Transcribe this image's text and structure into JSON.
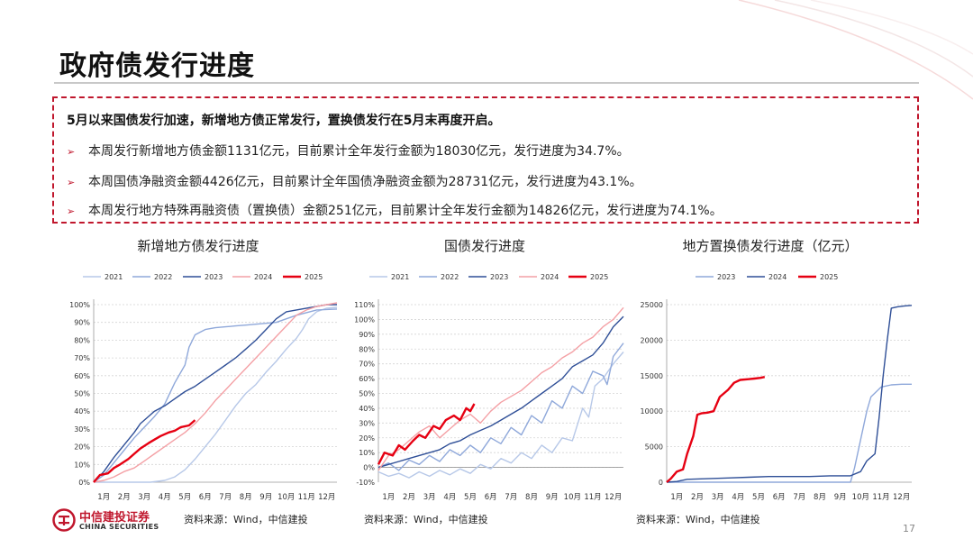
{
  "page": {
    "title": "政府债发行进度",
    "page_number": "17",
    "logo_cn": "中信建投证券",
    "logo_en": "CHINA SECURITIES",
    "source_text": "资料来源：Wind，中信建投"
  },
  "summary": {
    "headline": "5月以来国债发行加速，新增地方债正常发行，置换债发行在5月末再度开启。",
    "bullets": [
      "本周发行新增地方债金额1131亿元，目前累计全年发行金额为18030亿元，发行进度为34.7%。",
      "本周国债净融资金额4426亿元，目前累计全年国债净融资金额为28731亿元，发行进度为43.1%。",
      "本周发行地方特殊再融资债（置换债）金额251亿元，目前累计全年发行金额为14826亿元，发行进度为74.1%。"
    ]
  },
  "chart_data": [
    {
      "type": "line",
      "title": "新增地方债发行进度",
      "x_labels": [
        "1月",
        "2月",
        "3月",
        "4月",
        "5月",
        "6月",
        "7月",
        "8月",
        "9月",
        "10月",
        "11月",
        "12月"
      ],
      "ylim": [
        0,
        100
      ],
      "y_ticks": [
        "0%",
        "10%",
        "20%",
        "30%",
        "40%",
        "50%",
        "60%",
        "70%",
        "80%",
        "90%",
        "100%"
      ],
      "legend_position": "top",
      "series": [
        {
          "name": "2021",
          "color": "#b7c8e8",
          "x": [
            1,
            2,
            3,
            3.8,
            4.5,
            5,
            5.5,
            6,
            6.5,
            7,
            7.5,
            8,
            8.5,
            9,
            9.5,
            10,
            10.5,
            11,
            11.3,
            11.6,
            12,
            12.5,
            13
          ],
          "y": [
            0,
            0,
            0,
            0,
            1,
            3,
            7,
            13,
            20,
            27,
            35,
            43,
            50,
            55,
            62,
            68,
            75,
            81,
            86,
            92,
            96,
            98,
            98.5
          ]
        },
        {
          "name": "2022",
          "color": "#8fa8da",
          "x": [
            1,
            1.5,
            2,
            2.5,
            3,
            3.5,
            4,
            4.5,
            5,
            5.5,
            5.7,
            6,
            6.5,
            7,
            7.5,
            8,
            8.5,
            9,
            9.5,
            10,
            11,
            12,
            13
          ],
          "y": [
            0,
            4,
            11,
            18,
            25,
            31,
            37,
            44,
            56,
            66,
            76,
            83,
            86,
            87,
            87.5,
            88,
            88.5,
            89,
            89.5,
            90,
            94,
            97,
            97.5
          ]
        },
        {
          "name": "2023",
          "color": "#2f4f97",
          "x": [
            1,
            1.5,
            2,
            2.5,
            3,
            3.3,
            3.7,
            4,
            4.5,
            5,
            5.5,
            6,
            6.5,
            7,
            7.5,
            8,
            8.5,
            9,
            9.5,
            10,
            10.5,
            11,
            11.5,
            12,
            12.5,
            13
          ],
          "y": [
            0,
            6,
            14,
            21,
            28,
            33,
            37,
            40,
            43,
            47,
            51,
            54,
            58,
            62,
            66,
            70,
            75,
            80,
            86,
            92,
            96,
            97,
            98,
            99,
            100,
            100
          ]
        },
        {
          "name": "2024",
          "color": "#f4a0a5",
          "x": [
            1,
            1.5,
            2,
            2.5,
            3,
            3.5,
            4,
            4.5,
            5,
            5.5,
            6,
            6.5,
            7,
            7.5,
            8,
            8.5,
            9,
            9.5,
            10,
            10.5,
            11,
            11.5,
            12,
            12.5,
            13
          ],
          "y": [
            0,
            1,
            3,
            6,
            8,
            12,
            16,
            20,
            24,
            28,
            33,
            39,
            46,
            52,
            58,
            64,
            70,
            76,
            82,
            88,
            94,
            97,
            99,
            100,
            101
          ]
        },
        {
          "name": "2025",
          "color": "#e60012",
          "bold": true,
          "x": [
            1,
            1.3,
            1.7,
            2,
            2.3,
            2.7,
            3,
            3.3,
            3.7,
            4,
            4.3,
            4.7,
            5,
            5.3,
            5.7,
            6
          ],
          "y": [
            0,
            4,
            5,
            8,
            10,
            13,
            16,
            19,
            22,
            24,
            26,
            28,
            29,
            31,
            32,
            35
          ]
        }
      ]
    },
    {
      "type": "line",
      "title": "国债发行进度",
      "x_labels": [
        "1月",
        "2月",
        "3月",
        "4月",
        "5月",
        "6月",
        "7月",
        "8月",
        "9月",
        "10月",
        "11月",
        "12月"
      ],
      "ylim": [
        -10,
        110
      ],
      "y_ticks": [
        "-10%",
        "0%",
        "10%",
        "20%",
        "30%",
        "40%",
        "50%",
        "60%",
        "70%",
        "80%",
        "90%",
        "100%",
        "110%"
      ],
      "legend_position": "top",
      "series": [
        {
          "name": "2021",
          "color": "#b7c8e8",
          "x": [
            1,
            1.5,
            2,
            2.5,
            3,
            3.5,
            4,
            4.5,
            5,
            5.5,
            6,
            6.5,
            7,
            7.5,
            8,
            8.5,
            9,
            9.5,
            10,
            10.5,
            11,
            11.3,
            11.6,
            12,
            12.5,
            13
          ],
          "y": [
            -3,
            -6,
            -4,
            -7,
            -3,
            -6,
            -2,
            -5,
            -1,
            -4,
            2,
            -1,
            6,
            3,
            10,
            6,
            15,
            10,
            20,
            18,
            40,
            34,
            55,
            60,
            70,
            78
          ]
        },
        {
          "name": "2022",
          "color": "#8fa8da",
          "x": [
            1,
            1.5,
            2,
            2.5,
            3,
            3.5,
            4,
            4.5,
            5,
            5.5,
            6,
            6.5,
            7,
            7.5,
            8,
            8.5,
            9,
            9.5,
            10,
            10.5,
            11,
            11.5,
            12,
            12.2,
            12.5,
            13
          ],
          "y": [
            0,
            3,
            -2,
            5,
            2,
            8,
            4,
            12,
            8,
            15,
            10,
            20,
            16,
            27,
            22,
            35,
            30,
            45,
            40,
            55,
            50,
            65,
            62,
            56,
            75,
            84
          ]
        },
        {
          "name": "2023",
          "color": "#2f4f97",
          "x": [
            1,
            1.5,
            2,
            2.5,
            3,
            3.5,
            4,
            4.5,
            5,
            5.5,
            6,
            6.5,
            7,
            7.5,
            8,
            8.5,
            9,
            9.5,
            10,
            10.5,
            11,
            11.5,
            12,
            12.5,
            13
          ],
          "y": [
            0,
            2,
            4,
            6,
            8,
            10,
            12,
            16,
            18,
            22,
            25,
            28,
            32,
            36,
            40,
            45,
            50,
            55,
            60,
            68,
            72,
            76,
            84,
            95,
            102
          ]
        },
        {
          "name": "2024",
          "color": "#f4a0a5",
          "x": [
            1,
            1.5,
            2,
            2.5,
            3,
            3.5,
            4,
            4.5,
            5,
            5.5,
            6,
            6.5,
            7,
            7.5,
            8,
            8.5,
            9,
            9.5,
            10,
            10.5,
            11,
            11.5,
            12,
            12.5,
            13
          ],
          "y": [
            -2,
            8,
            12,
            18,
            24,
            28,
            20,
            26,
            32,
            36,
            30,
            38,
            44,
            48,
            52,
            58,
            64,
            68,
            74,
            78,
            84,
            88,
            95,
            100,
            108
          ]
        },
        {
          "name": "2025",
          "color": "#e60012",
          "bold": true,
          "x": [
            1,
            1.3,
            1.7,
            2,
            2.3,
            2.7,
            3,
            3.3,
            3.7,
            4,
            4.3,
            4.7,
            5,
            5.3,
            5.5,
            5.7
          ],
          "y": [
            2,
            10,
            8,
            15,
            12,
            18,
            22,
            20,
            28,
            26,
            32,
            35,
            32,
            40,
            38,
            43
          ]
        }
      ]
    },
    {
      "type": "line",
      "title": "地方置换债发行进度（亿元）",
      "x_labels": [
        "1月",
        "2月",
        "3月",
        "4月",
        "5月",
        "6月",
        "7月",
        "8月",
        "9月",
        "10月",
        "11月",
        "12月"
      ],
      "ylim": [
        0,
        25000
      ],
      "y_ticks": [
        "0",
        "5000",
        "10000",
        "15000",
        "20000",
        "25000"
      ],
      "legend_position": "top",
      "series": [
        {
          "name": "2023",
          "color": "#8fa8da",
          "x": [
            1,
            10,
            10.2,
            10.5,
            10.8,
            11,
            11.5,
            12,
            12.5,
            13
          ],
          "y": [
            0,
            0,
            2000,
            6000,
            10000,
            12000,
            13400,
            13700,
            13800,
            13800
          ]
        },
        {
          "name": "2024",
          "color": "#2f4f97",
          "x": [
            1,
            1.5,
            2,
            3,
            4,
            5,
            6,
            7,
            8,
            9,
            10,
            10.5,
            10.8,
            11,
            11.2,
            11.4,
            11.6,
            11.8,
            12,
            12.3,
            12.6,
            13
          ],
          "y": [
            0,
            100,
            400,
            500,
            600,
            700,
            800,
            800,
            800,
            900,
            900,
            1500,
            3000,
            3500,
            4000,
            9000,
            15000,
            20000,
            24500,
            24700,
            24800,
            24900
          ]
        },
        {
          "name": "2025",
          "color": "#e60012",
          "bold": true,
          "x": [
            1,
            1.2,
            1.5,
            1.8,
            2,
            2.3,
            2.5,
            2.7,
            3,
            3.3,
            3.6,
            4,
            4.3,
            4.6,
            5,
            5.3,
            5.6,
            5.8
          ],
          "y": [
            0,
            500,
            1500,
            1800,
            4000,
            6500,
            9500,
            9700,
            9800,
            10000,
            12000,
            13000,
            14000,
            14400,
            14500,
            14600,
            14700,
            14826
          ]
        }
      ]
    }
  ]
}
